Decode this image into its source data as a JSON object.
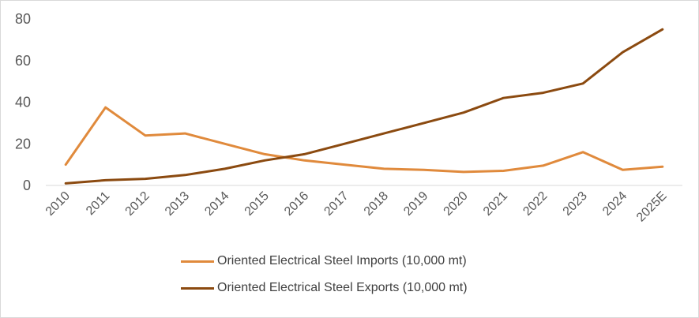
{
  "chart_data": {
    "type": "line",
    "title": "",
    "xlabel": "",
    "ylabel": "",
    "ylim": [
      0,
      80
    ],
    "yticks": [
      0,
      20,
      40,
      60,
      80
    ],
    "grid": false,
    "legend_position": "bottom",
    "categories": [
      "2010",
      "2011",
      "2012",
      "2013",
      "2014",
      "2015",
      "2016",
      "2017",
      "2018",
      "2019",
      "2020",
      "2021",
      "2022",
      "2023",
      "2024",
      "2025E"
    ],
    "series": [
      {
        "name": "Oriented Electrical Steel Imports (10,000 mt)",
        "color": "#E08A3C",
        "values": [
          10,
          37.5,
          24,
          25,
          20,
          15,
          12,
          10,
          8,
          7.5,
          6.5,
          7,
          9.5,
          16,
          7.5,
          9
        ]
      },
      {
        "name": "Oriented Electrical Steel Exports (10,000 mt)",
        "color": "#8B4A10",
        "values": [
          1,
          2.5,
          3.2,
          5,
          8,
          12,
          15,
          20,
          25,
          30,
          35,
          42,
          44.5,
          49,
          64,
          75
        ]
      }
    ]
  }
}
